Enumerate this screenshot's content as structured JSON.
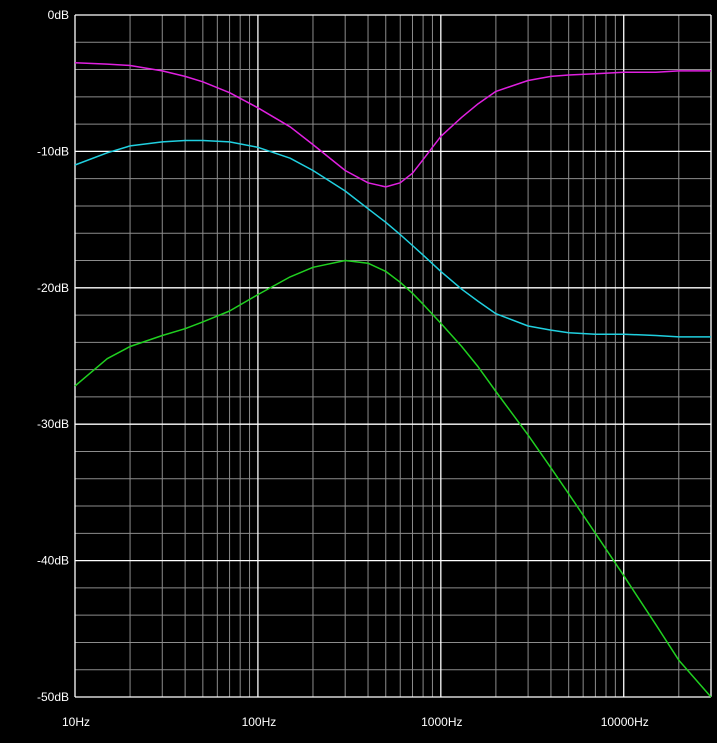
{
  "chart_data": {
    "type": "line",
    "x_scale": "log",
    "xlim": [
      10,
      30000
    ],
    "ylim": [
      -50,
      0
    ],
    "grid": true,
    "x_tick_labels": [
      {
        "value": 10,
        "label": "10Hz"
      },
      {
        "value": 100,
        "label": "100Hz"
      },
      {
        "value": 1000,
        "label": "1000Hz"
      },
      {
        "value": 10000,
        "label": "10000Hz"
      }
    ],
    "y_tick_labels": [
      {
        "value": 0,
        "label": "0dB"
      },
      {
        "value": -10,
        "label": "-10dB"
      },
      {
        "value": -20,
        "label": "-20dB"
      },
      {
        "value": -30,
        "label": "-30dB"
      },
      {
        "value": -40,
        "label": "-40dB"
      },
      {
        "value": -50,
        "label": "-50dB"
      }
    ],
    "series": [
      {
        "color": "#e020e0",
        "x": [
          10,
          15,
          20,
          30,
          40,
          50,
          70,
          100,
          150,
          200,
          300,
          400,
          500,
          600,
          700,
          800,
          1000,
          1300,
          1600,
          2000,
          3000,
          4000,
          5000,
          7000,
          10000,
          15000,
          20000,
          30000
        ],
        "y": [
          -3.5,
          -3.6,
          -3.7,
          -4.1,
          -4.5,
          -4.9,
          -5.7,
          -6.8,
          -8.2,
          -9.5,
          -11.4,
          -12.3,
          -12.6,
          -12.3,
          -11.6,
          -10.6,
          -8.9,
          -7.5,
          -6.5,
          -5.6,
          -4.8,
          -4.5,
          -4.4,
          -4.3,
          -4.2,
          -4.2,
          -4.1,
          -4.1
        ]
      },
      {
        "color": "#20d0e0",
        "x": [
          10,
          15,
          20,
          30,
          40,
          50,
          70,
          100,
          150,
          200,
          300,
          400,
          500,
          600,
          700,
          800,
          1000,
          1300,
          1600,
          2000,
          3000,
          4000,
          5000,
          7000,
          10000,
          15000,
          20000,
          30000
        ],
        "y": [
          -11.0,
          -10.1,
          -9.6,
          -9.3,
          -9.2,
          -9.2,
          -9.3,
          -9.7,
          -10.5,
          -11.4,
          -12.9,
          -14.2,
          -15.2,
          -16.1,
          -16.9,
          -17.6,
          -18.8,
          -20.1,
          -21.0,
          -21.9,
          -22.8,
          -23.1,
          -23.3,
          -23.4,
          -23.4,
          -23.5,
          -23.6,
          -23.6
        ]
      },
      {
        "color": "#20d020",
        "x": [
          10,
          15,
          20,
          30,
          40,
          50,
          70,
          100,
          150,
          200,
          300,
          400,
          500,
          600,
          700,
          800,
          1000,
          1300,
          1600,
          2000,
          3000,
          4000,
          5000,
          7000,
          10000,
          15000,
          20000,
          30000
        ],
        "y": [
          -27.2,
          -25.2,
          -24.3,
          -23.5,
          -23.0,
          -22.5,
          -21.7,
          -20.5,
          -19.2,
          -18.5,
          -18.0,
          -18.2,
          -18.8,
          -19.6,
          -20.4,
          -21.2,
          -22.6,
          -24.3,
          -25.8,
          -27.6,
          -30.8,
          -33.2,
          -35.1,
          -38.0,
          -41.1,
          -44.7,
          -47.3,
          -50.0
        ]
      }
    ]
  }
}
